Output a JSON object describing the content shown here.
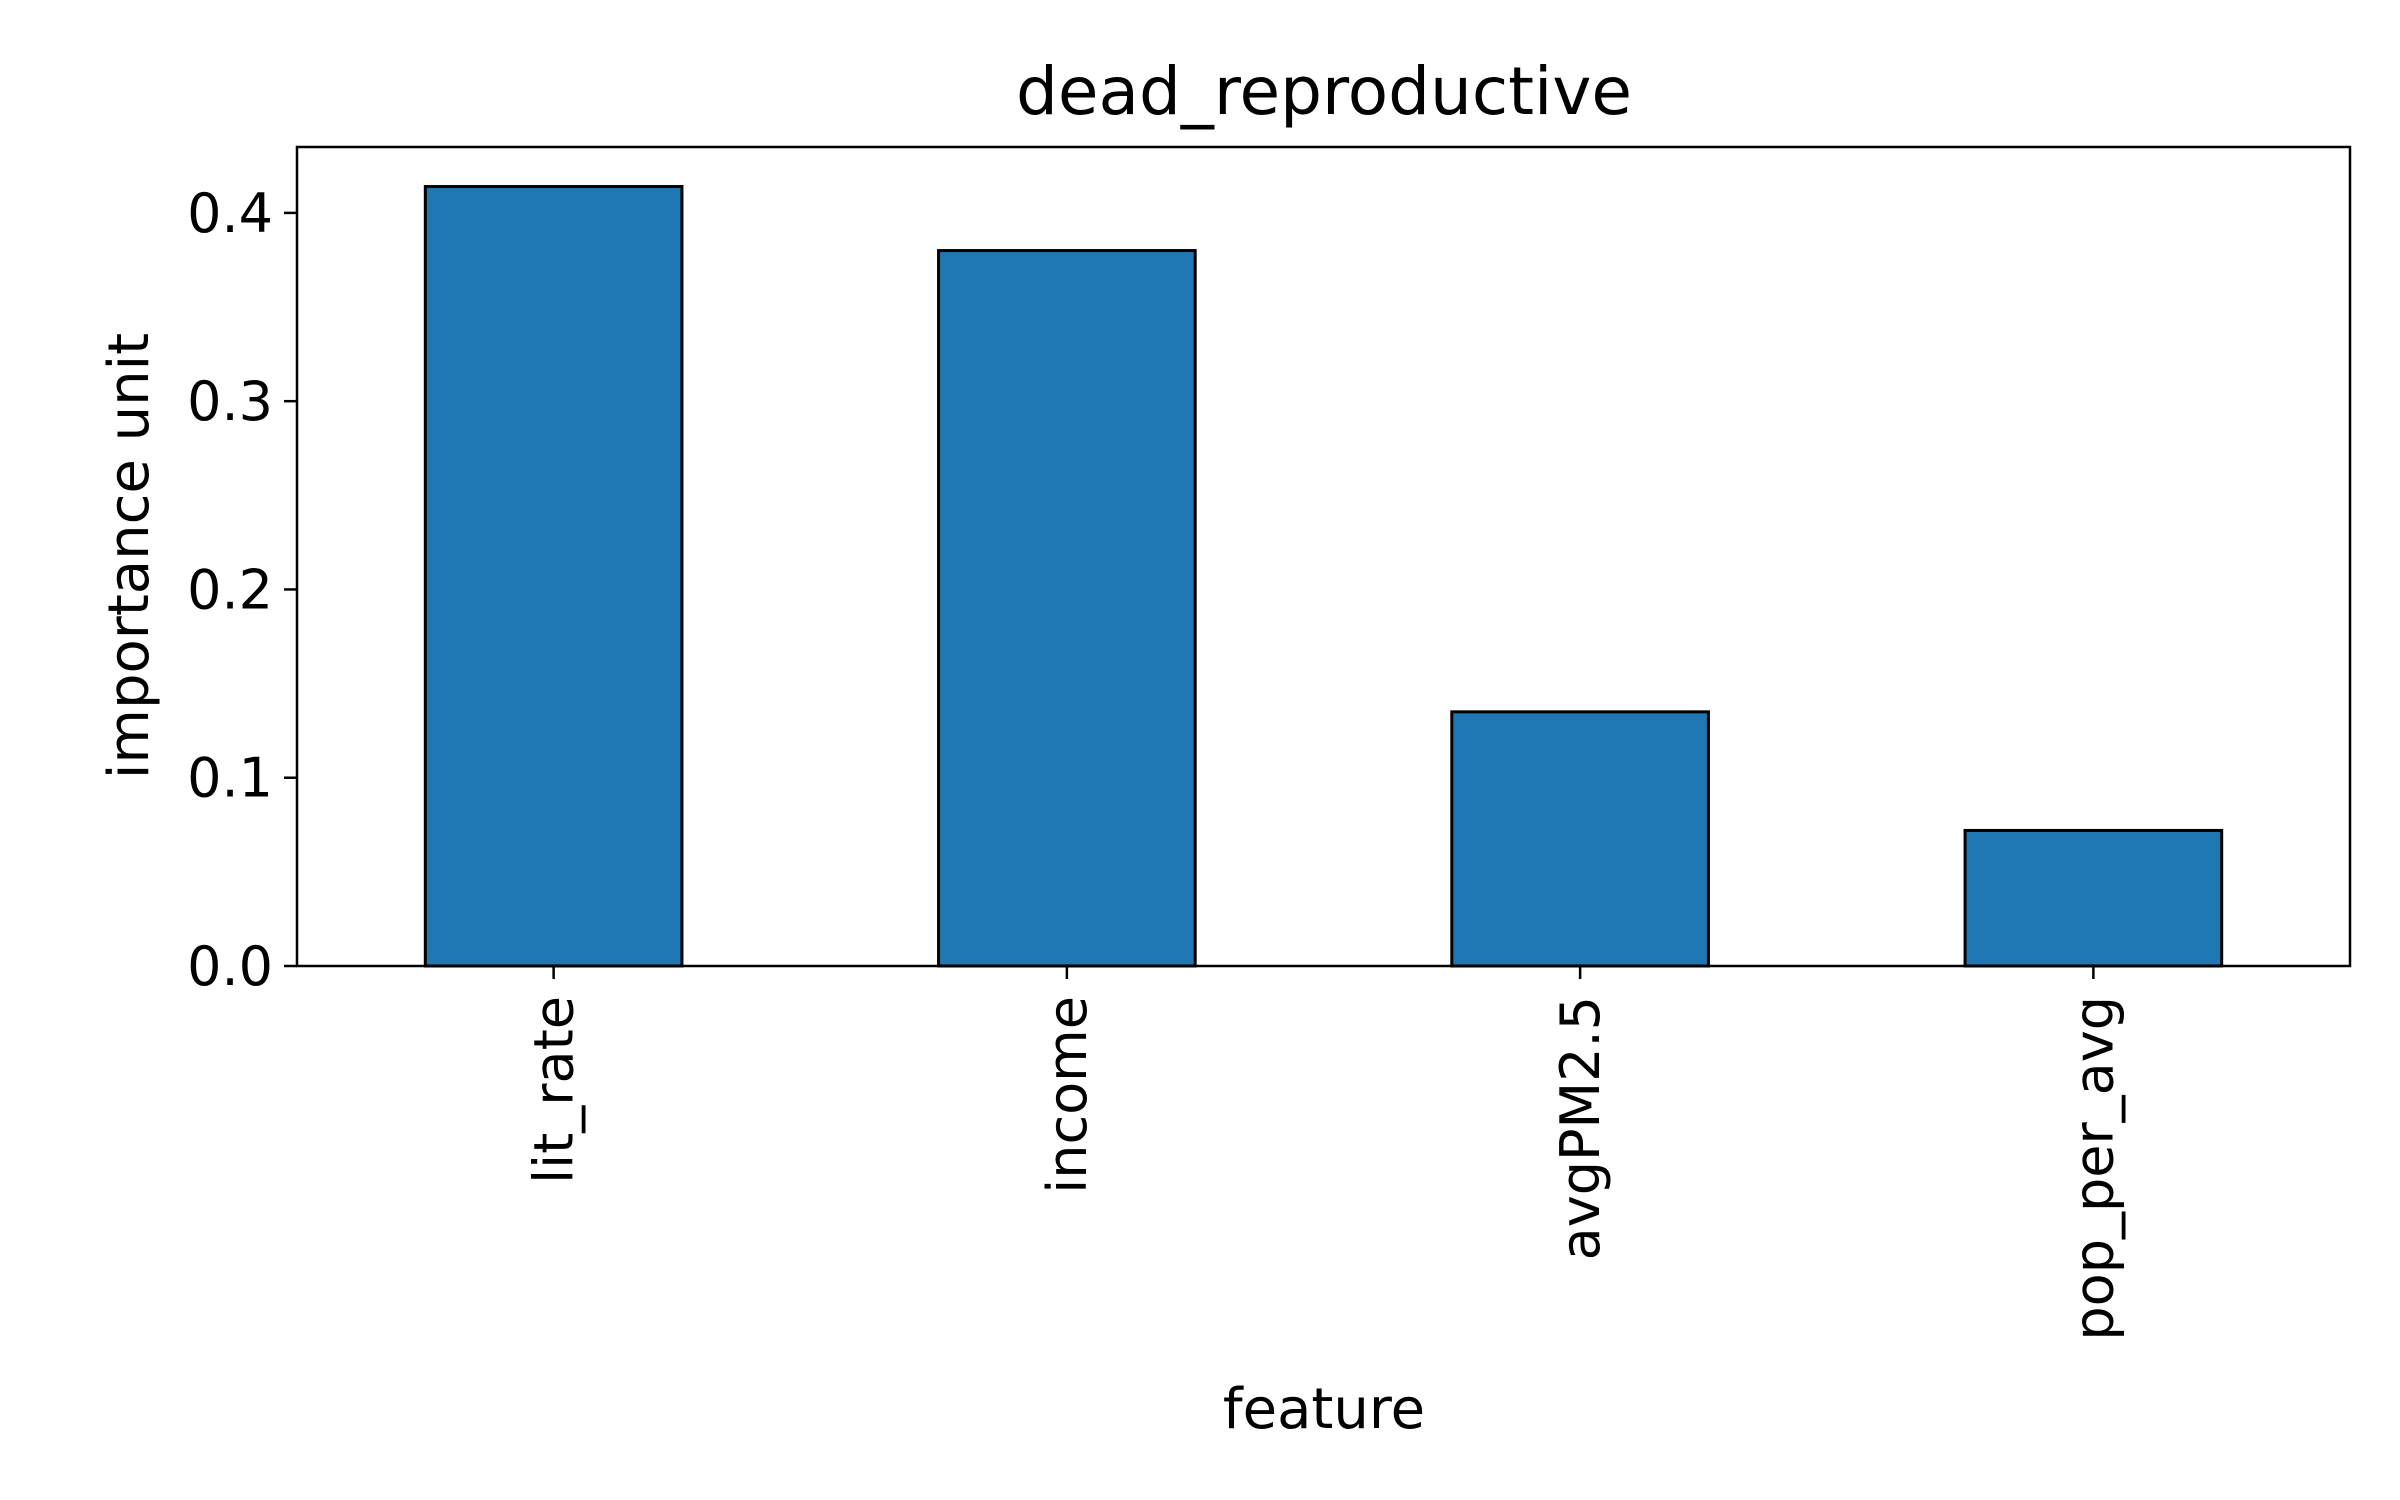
{
  "chart_data": {
    "type": "bar",
    "title": "dead_reproductive",
    "xlabel": "feature",
    "ylabel": "importance unit",
    "categories": [
      "lit_rate",
      "income",
      "avgPM2.5",
      "pop_per_avg"
    ],
    "values": [
      0.414,
      0.38,
      0.135,
      0.072
    ],
    "ylim": [
      0,
      0.435
    ],
    "yticks": [
      0.0,
      0.1,
      0.2,
      0.3,
      0.4
    ],
    "ytick_labels": [
      "0.0",
      "0.1",
      "0.2",
      "0.3",
      "0.4"
    ],
    "bar_color": "#1f77b4",
    "edge_color": "#000000",
    "grid": false,
    "legend": false
  }
}
